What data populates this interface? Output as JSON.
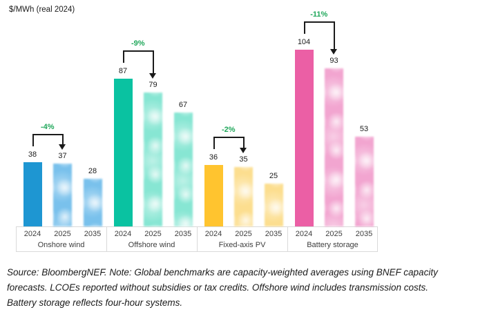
{
  "title": "$/MWh (real 2024)",
  "footer": {
    "lines": [
      "Source: BloombergNEF. Note: Global benchmarks are capacity-weighted averages using BNEF capacity",
      "forecasts. LCOEs reported without subsidies or tax credits. Offshore wind includes transmission costs.",
      "Battery storage reflects four-hour systems."
    ]
  },
  "chart_data": {
    "type": "bar",
    "title": "$/MWh (real 2024)",
    "ylabel": "$/MWh (real 2024)",
    "xlabel": "",
    "ylim": [
      0,
      110
    ],
    "grid": false,
    "legend_position": "none",
    "categories": [
      "2024",
      "2025",
      "2035"
    ],
    "groups": [
      {
        "label": "Onshore wind",
        "values": [
          38,
          37,
          28
        ],
        "change": "-4%",
        "solid_color": "#1E96D2",
        "forecast_color": "#79C1EC"
      },
      {
        "label": "Offshore wind",
        "values": [
          87,
          79,
          67
        ],
        "change": "-9%",
        "solid_color": "#0AC2A1",
        "forecast_color": "#87E6D3"
      },
      {
        "label": "Fixed-axis PV",
        "values": [
          36,
          35,
          25
        ],
        "change": "-2%",
        "solid_color": "#FFC42F",
        "forecast_color": "#FCDE8F"
      },
      {
        "label": "Battery storage",
        "values": [
          104,
          93,
          53
        ],
        "change": "-11%",
        "solid_color": "#EB5FA5",
        "forecast_color": "#F2A5D0"
      }
    ],
    "change_color": "#1FA75A",
    "notes": "2024 bar solid (actual); 2025 and 2035 bars blurred (forecast); black bracket arrow from 2024 to 2025 labelled with % change"
  }
}
